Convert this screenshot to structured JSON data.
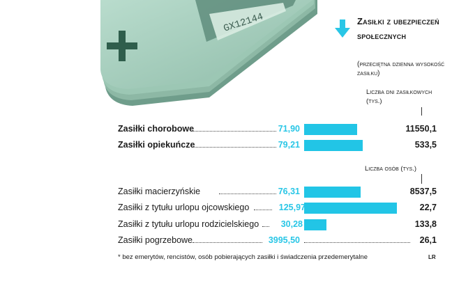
{
  "chart_data": {
    "type": "bar",
    "title": "Zasiłki z ubezpieczeń społecznych",
    "subtitle": "(przeciętna dzienna wysokość zasiłku)",
    "groups": [
      {
        "count_header": "Liczba dni zasiłkowych (tys.)",
        "rows": [
          {
            "label": "Zasiłki chorobowe",
            "bold": true,
            "value": 71.9,
            "value_label": "71,90",
            "count_label": "11550,1"
          },
          {
            "label": "Zasiłki opiekuńcze",
            "bold": true,
            "value": 79.21,
            "value_label": "79,21",
            "count_label": "533,5"
          }
        ]
      },
      {
        "count_header": "Liczba osób (tys.)",
        "rows": [
          {
            "label": "Zasiłki macierzyńskie",
            "bold": false,
            "value": 76.31,
            "value_label": "76,31",
            "count_label": "8537,5"
          },
          {
            "label": "Zasiłki z tytułu urlopu ojcowskiego",
            "bold": false,
            "value": 125.97,
            "value_label": "125,97",
            "count_label": "22,7"
          },
          {
            "label": "Zasiłki z tytułu urlopu rodzicielskiego",
            "bold": false,
            "value": 30.28,
            "value_label": "30,28",
            "count_label": "133,8"
          },
          {
            "label": "Zasiłki pogrzebowe",
            "bold": false,
            "value": 3995.5,
            "value_label": "3995,50",
            "count_label": "26,1"
          }
        ]
      }
    ],
    "bar_scale_max": 140,
    "footnote": "* bez emerytów, rencistów, osób pobierających zasiłki i świadczenia przedemerytalne",
    "credit": "LR"
  },
  "colors": {
    "bar": "#22c5e6",
    "value_text": "#29c6e6",
    "banknote": "#a9cfc1",
    "banknote_dark": "#6f9d8b"
  },
  "icons": {
    "banknote": "banknote-stack-illustration",
    "arrow": "arrow-down-icon"
  }
}
